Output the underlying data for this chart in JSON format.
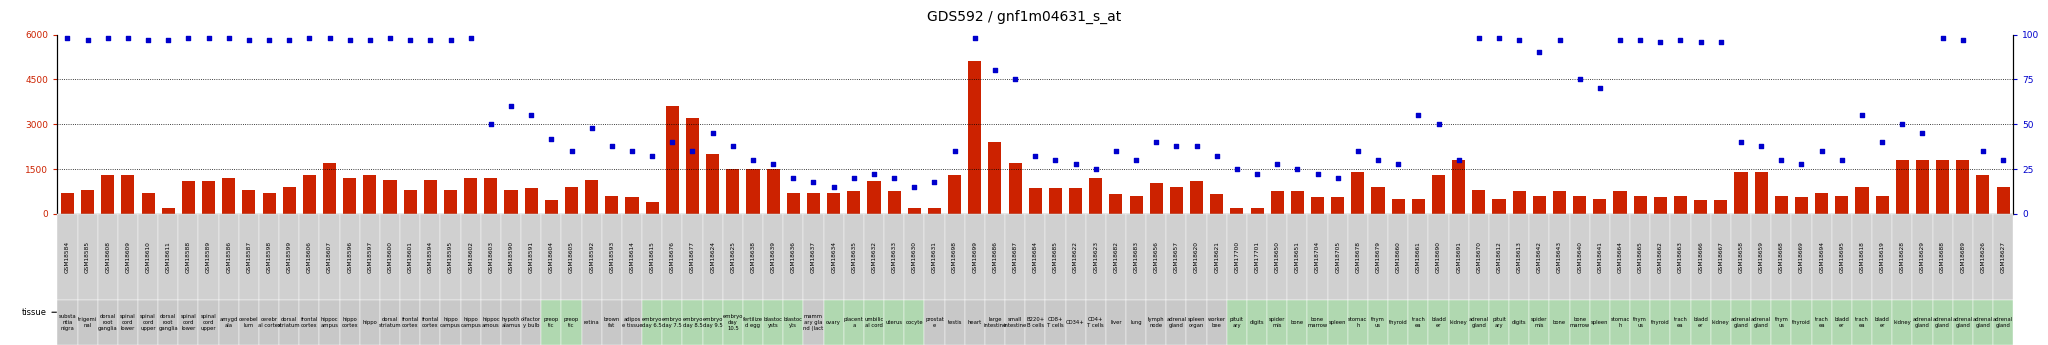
{
  "title": "GDS592 / gnf1m04631_s_at",
  "samples": [
    {
      "gsm": "GSM18584",
      "tissue": "substa\nntia\nnigra",
      "count": 700,
      "pct": 98,
      "tc": "#c8c8c8"
    },
    {
      "gsm": "GSM18585",
      "tissue": "trigemi\nnal",
      "count": 800,
      "pct": 97,
      "tc": "#c8c8c8"
    },
    {
      "gsm": "GSM18608",
      "tissue": "dorsal\nroot\nganglia",
      "count": 1300,
      "pct": 98,
      "tc": "#c8c8c8"
    },
    {
      "gsm": "GSM18609",
      "tissue": "spinal\ncord\nlower",
      "count": 1300,
      "pct": 98,
      "tc": "#c8c8c8"
    },
    {
      "gsm": "GSM18610",
      "tissue": "spinal\ncord\nupper",
      "count": 700,
      "pct": 97,
      "tc": "#c8c8c8"
    },
    {
      "gsm": "GSM18611",
      "tissue": "dorsal\nroot\nganglia",
      "count": 200,
      "pct": 97,
      "tc": "#c8c8c8"
    },
    {
      "gsm": "GSM18588",
      "tissue": "spinal\ncord\nlower",
      "count": 1100,
      "pct": 98,
      "tc": "#c8c8c8"
    },
    {
      "gsm": "GSM18589",
      "tissue": "spinal\ncord\nupper",
      "count": 1100,
      "pct": 98,
      "tc": "#c8c8c8"
    },
    {
      "gsm": "GSM18586",
      "tissue": "amygd\nala",
      "count": 1200,
      "pct": 98,
      "tc": "#c8c8c8"
    },
    {
      "gsm": "GSM18587",
      "tissue": "cerebel\nlum",
      "count": 800,
      "pct": 97,
      "tc": "#c8c8c8"
    },
    {
      "gsm": "GSM18598",
      "tissue": "cerebr\nal cortex",
      "count": 700,
      "pct": 97,
      "tc": "#c8c8c8"
    },
    {
      "gsm": "GSM18599",
      "tissue": "dorsal\nstriatum",
      "count": 900,
      "pct": 97,
      "tc": "#c8c8c8"
    },
    {
      "gsm": "GSM18606",
      "tissue": "frontal\ncortex",
      "count": 1300,
      "pct": 98,
      "tc": "#c8c8c8"
    },
    {
      "gsm": "GSM18607",
      "tissue": "hippoc\nampus",
      "count": 1700,
      "pct": 98,
      "tc": "#c8c8c8"
    },
    {
      "gsm": "GSM18596",
      "tissue": "hippo\ncortex",
      "count": 1200,
      "pct": 97,
      "tc": "#c8c8c8"
    },
    {
      "gsm": "GSM18597",
      "tissue": "hippo",
      "count": 1300,
      "pct": 97,
      "tc": "#c8c8c8"
    },
    {
      "gsm": "GSM18600",
      "tissue": "dorsal\nstriatum",
      "count": 1150,
      "pct": 98,
      "tc": "#c8c8c8"
    },
    {
      "gsm": "GSM18601",
      "tissue": "frontal\ncortex",
      "count": 800,
      "pct": 97,
      "tc": "#c8c8c8"
    },
    {
      "gsm": "GSM18594",
      "tissue": "frontal\ncortex",
      "count": 1150,
      "pct": 97,
      "tc": "#c8c8c8"
    },
    {
      "gsm": "GSM18595",
      "tissue": "hippo\ncampus",
      "count": 800,
      "pct": 97,
      "tc": "#c8c8c8"
    },
    {
      "gsm": "GSM18602",
      "tissue": "hippo\ncampus",
      "count": 1200,
      "pct": 98,
      "tc": "#c8c8c8"
    },
    {
      "gsm": "GSM18603",
      "tissue": "hippoc\namous",
      "count": 1200,
      "pct": 50,
      "tc": "#c8c8c8"
    },
    {
      "gsm": "GSM18590",
      "tissue": "hypoth\nalamus",
      "count": 800,
      "pct": 60,
      "tc": "#c8c8c8"
    },
    {
      "gsm": "GSM18591",
      "tissue": "olfactor\ny bulb",
      "count": 850,
      "pct": 55,
      "tc": "#c8c8c8"
    },
    {
      "gsm": "GSM18604",
      "tissue": "preop\ntic",
      "count": 450,
      "pct": 42,
      "tc": "#b0d8b0"
    },
    {
      "gsm": "GSM18605",
      "tissue": "preop\ntic",
      "count": 900,
      "pct": 35,
      "tc": "#b0d8b0"
    },
    {
      "gsm": "GSM18592",
      "tissue": "retina",
      "count": 1150,
      "pct": 48,
      "tc": "#c8c8c8"
    },
    {
      "gsm": "GSM18593",
      "tissue": "brown\nfat",
      "count": 600,
      "pct": 38,
      "tc": "#c8c8c8"
    },
    {
      "gsm": "GSM18614",
      "tissue": "adipos\ne tissue",
      "count": 550,
      "pct": 35,
      "tc": "#c8c8c8"
    },
    {
      "gsm": "GSM18615",
      "tissue": "embryo\nday 6.5",
      "count": 400,
      "pct": 32,
      "tc": "#b0d8b0"
    },
    {
      "gsm": "GSM18676",
      "tissue": "embryo\nday 7.5",
      "count": 3600,
      "pct": 40,
      "tc": "#b0d8b0"
    },
    {
      "gsm": "GSM18677",
      "tissue": "embryo\nday 8.5",
      "count": 3200,
      "pct": 35,
      "tc": "#b0d8b0"
    },
    {
      "gsm": "GSM18624",
      "tissue": "embryo\nday 9.5",
      "count": 2000,
      "pct": 45,
      "tc": "#b0d8b0"
    },
    {
      "gsm": "GSM18625",
      "tissue": "embryo\nday\n10.5",
      "count": 1500,
      "pct": 38,
      "tc": "#b0d8b0"
    },
    {
      "gsm": "GSM18638",
      "tissue": "fertilize\nd egg",
      "count": 1500,
      "pct": 30,
      "tc": "#b0d8b0"
    },
    {
      "gsm": "GSM18639",
      "tissue": "blastoc\nysts",
      "count": 1500,
      "pct": 28,
      "tc": "#b0d8b0"
    },
    {
      "gsm": "GSM18636",
      "tissue": "blastoc\nyts",
      "count": 700,
      "pct": 20,
      "tc": "#b0d8b0"
    },
    {
      "gsm": "GSM18637",
      "tissue": "mamm\nary gla\nnd (lact",
      "count": 700,
      "pct": 18,
      "tc": "#c8c8c8"
    },
    {
      "gsm": "GSM18634",
      "tissue": "ovary",
      "count": 700,
      "pct": 15,
      "tc": "#b0d8b0"
    },
    {
      "gsm": "GSM18635",
      "tissue": "placent\na",
      "count": 750,
      "pct": 20,
      "tc": "#b0d8b0"
    },
    {
      "gsm": "GSM18632",
      "tissue": "umbilic\nal cord",
      "count": 1100,
      "pct": 22,
      "tc": "#b0d8b0"
    },
    {
      "gsm": "GSM18633",
      "tissue": "uterus",
      "count": 750,
      "pct": 20,
      "tc": "#b0d8b0"
    },
    {
      "gsm": "GSM18630",
      "tissue": "oocyte",
      "count": 200,
      "pct": 15,
      "tc": "#b0d8b0"
    },
    {
      "gsm": "GSM18631",
      "tissue": "prostat\ne",
      "count": 200,
      "pct": 18,
      "tc": "#c8c8c8"
    },
    {
      "gsm": "GSM18698",
      "tissue": "testis",
      "count": 1300,
      "pct": 35,
      "tc": "#c8c8c8"
    },
    {
      "gsm": "GSM18699",
      "tissue": "heart",
      "count": 5100,
      "pct": 98,
      "tc": "#c8c8c8"
    },
    {
      "gsm": "GSM18686",
      "tissue": "large\nintestine",
      "count": 2400,
      "pct": 80,
      "tc": "#c8c8c8"
    },
    {
      "gsm": "GSM18687",
      "tissue": "small\nintestine",
      "count": 1700,
      "pct": 75,
      "tc": "#c8c8c8"
    },
    {
      "gsm": "GSM18684",
      "tissue": "B220+\nB cells",
      "count": 850,
      "pct": 32,
      "tc": "#c8c8c8"
    },
    {
      "gsm": "GSM18685",
      "tissue": "CD8+\nT cells",
      "count": 850,
      "pct": 30,
      "tc": "#c8c8c8"
    },
    {
      "gsm": "GSM18622",
      "tissue": "CD34+",
      "count": 850,
      "pct": 28,
      "tc": "#c8c8c8"
    },
    {
      "gsm": "GSM18623",
      "tissue": "CD4+\nT cells",
      "count": 1200,
      "pct": 25,
      "tc": "#c8c8c8"
    },
    {
      "gsm": "GSM18682",
      "tissue": "liver",
      "count": 650,
      "pct": 35,
      "tc": "#c8c8c8"
    },
    {
      "gsm": "GSM18683",
      "tissue": "lung",
      "count": 600,
      "pct": 30,
      "tc": "#c8c8c8"
    },
    {
      "gsm": "GSM18656",
      "tissue": "lymph\nnode",
      "count": 1050,
      "pct": 40,
      "tc": "#c8c8c8"
    },
    {
      "gsm": "GSM18657",
      "tissue": "adrenal\ngland",
      "count": 900,
      "pct": 38,
      "tc": "#c8c8c8"
    },
    {
      "gsm": "GSM18620",
      "tissue": "spleen\norgan",
      "count": 1100,
      "pct": 38,
      "tc": "#c8c8c8"
    },
    {
      "gsm": "GSM18621",
      "tissue": "worker\nbee",
      "count": 650,
      "pct": 32,
      "tc": "#c8c8c8"
    },
    {
      "gsm": "GSM17700",
      "tissue": "pituit\nary",
      "count": 200,
      "pct": 25,
      "tc": "#b0d8b0"
    },
    {
      "gsm": "GSM17701",
      "tissue": "digits",
      "count": 200,
      "pct": 22,
      "tc": "#b0d8b0"
    },
    {
      "gsm": "GSM18650",
      "tissue": "spider\nmis",
      "count": 750,
      "pct": 28,
      "tc": "#b0d8b0"
    },
    {
      "gsm": "GSM18651",
      "tissue": "bone",
      "count": 750,
      "pct": 25,
      "tc": "#b0d8b0"
    },
    {
      "gsm": "GSM18704",
      "tissue": "bone\nmarrow",
      "count": 550,
      "pct": 22,
      "tc": "#b0d8b0"
    },
    {
      "gsm": "GSM18705",
      "tissue": "spleen",
      "count": 550,
      "pct": 20,
      "tc": "#b0d8b0"
    },
    {
      "gsm": "GSM18678",
      "tissue": "stomac\nh",
      "count": 1400,
      "pct": 35,
      "tc": "#b0d8b0"
    },
    {
      "gsm": "GSM18679",
      "tissue": "thym\nus",
      "count": 900,
      "pct": 30,
      "tc": "#b0d8b0"
    },
    {
      "gsm": "GSM18660",
      "tissue": "thyroid",
      "count": 500,
      "pct": 28,
      "tc": "#b0d8b0"
    },
    {
      "gsm": "GSM18661",
      "tissue": "trach\nea",
      "count": 500,
      "pct": 55,
      "tc": "#b0d8b0"
    },
    {
      "gsm": "GSM18690",
      "tissue": "bladd\ner",
      "count": 1300,
      "pct": 50,
      "tc": "#b0d8b0"
    },
    {
      "gsm": "GSM18691",
      "tissue": "kidney",
      "count": 1800,
      "pct": 30,
      "tc": "#b0d8b0"
    },
    {
      "gsm": "GSM18670",
      "tissue": "adrenal\ngland",
      "count": 800,
      "pct": 98,
      "tc": "#b0d8b0"
    },
    {
      "gsm": "GSM18612",
      "tissue": "pituit\nary",
      "count": 500,
      "pct": 98,
      "tc": "#b0d8b0"
    },
    {
      "gsm": "GSM18613",
      "tissue": "digits",
      "count": 750,
      "pct": 97,
      "tc": "#b0d8b0"
    },
    {
      "gsm": "GSM18642",
      "tissue": "spider\nmis",
      "count": 600,
      "pct": 90,
      "tc": "#b0d8b0"
    },
    {
      "gsm": "GSM18643",
      "tissue": "bone",
      "count": 750,
      "pct": 97,
      "tc": "#b0d8b0"
    },
    {
      "gsm": "GSM18640",
      "tissue": "bone\nmarrow",
      "count": 600,
      "pct": 75,
      "tc": "#b0d8b0"
    },
    {
      "gsm": "GSM18641",
      "tissue": "spleen",
      "count": 500,
      "pct": 70,
      "tc": "#b0d8b0"
    },
    {
      "gsm": "GSM18664",
      "tissue": "stomac\nh",
      "count": 750,
      "pct": 97,
      "tc": "#b0d8b0"
    },
    {
      "gsm": "GSM18665",
      "tissue": "thym\nus",
      "count": 600,
      "pct": 97,
      "tc": "#b0d8b0"
    },
    {
      "gsm": "GSM18662",
      "tissue": "thyroid",
      "count": 550,
      "pct": 96,
      "tc": "#b0d8b0"
    },
    {
      "gsm": "GSM18663",
      "tissue": "trach\nea",
      "count": 600,
      "pct": 97,
      "tc": "#b0d8b0"
    },
    {
      "gsm": "GSM18666",
      "tissue": "bladd\ner",
      "count": 450,
      "pct": 96,
      "tc": "#b0d8b0"
    },
    {
      "gsm": "GSM18667",
      "tissue": "kidney",
      "count": 450,
      "pct": 96,
      "tc": "#b0d8b0"
    },
    {
      "gsm": "GSM18658",
      "tissue": "adrenal\ngland",
      "count": 1400,
      "pct": 40,
      "tc": "#b0d8b0"
    },
    {
      "gsm": "GSM18659",
      "tissue": "adrenal\ngland",
      "count": 1400,
      "pct": 38,
      "tc": "#b0d8b0"
    },
    {
      "gsm": "GSM18668",
      "tissue": "thym\nus",
      "count": 600,
      "pct": 30,
      "tc": "#b0d8b0"
    },
    {
      "gsm": "GSM18669",
      "tissue": "thyroid",
      "count": 550,
      "pct": 28,
      "tc": "#b0d8b0"
    },
    {
      "gsm": "GSM18694",
      "tissue": "trach\nea",
      "count": 700,
      "pct": 35,
      "tc": "#b0d8b0"
    },
    {
      "gsm": "GSM18695",
      "tissue": "bladd\ner",
      "count": 600,
      "pct": 30,
      "tc": "#b0d8b0"
    },
    {
      "gsm": "GSM18618",
      "tissue": "trach\nea",
      "count": 900,
      "pct": 55,
      "tc": "#b0d8b0"
    },
    {
      "gsm": "GSM18619",
      "tissue": "bladd\ner",
      "count": 600,
      "pct": 40,
      "tc": "#b0d8b0"
    },
    {
      "gsm": "GSM18628",
      "tissue": "kidney",
      "count": 1800,
      "pct": 50,
      "tc": "#b0d8b0"
    },
    {
      "gsm": "GSM18629",
      "tissue": "adrenal\ngland",
      "count": 1800,
      "pct": 45,
      "tc": "#b0d8b0"
    },
    {
      "gsm": "GSM18688",
      "tissue": "adrenal\ngland",
      "count": 1800,
      "pct": 98,
      "tc": "#b0d8b0"
    },
    {
      "gsm": "GSM18689",
      "tissue": "adrenal\ngland",
      "count": 1800,
      "pct": 97,
      "tc": "#b0d8b0"
    },
    {
      "gsm": "GSM18626",
      "tissue": "adrenal\ngland",
      "count": 1300,
      "pct": 35,
      "tc": "#b0d8b0"
    },
    {
      "gsm": "GSM18627",
      "tissue": "adrenal\ngland",
      "count": 900,
      "pct": 30,
      "tc": "#b0d8b0"
    }
  ],
  "left_yticks": [
    0,
    1500,
    3000,
    4500,
    6000
  ],
  "right_yticks": [
    0,
    25,
    50,
    75,
    100
  ],
  "bar_color": "#cc2200",
  "dot_color": "#0000cc",
  "background": "#ffffff",
  "title_fontsize": 10,
  "tick_fontsize": 4.2,
  "tissue_fontsize": 3.8
}
